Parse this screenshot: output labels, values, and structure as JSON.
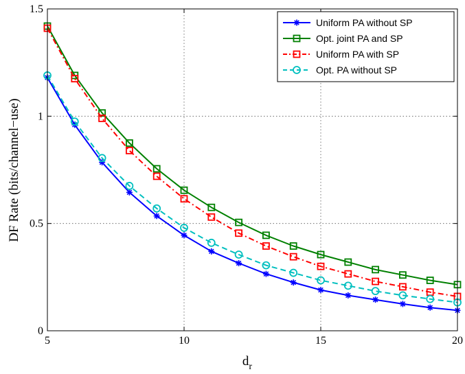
{
  "chart_data": {
    "type": "line",
    "title": "",
    "xlabel": "d",
    "xlabel_subscript": "r",
    "ylabel": "DF Rate (bits/channel−use)",
    "xlim": [
      5,
      20
    ],
    "ylim": [
      0,
      1.5
    ],
    "xticks": [
      "5",
      "10",
      "15",
      "20"
    ],
    "yticks": [
      "0",
      "0.5",
      "1",
      "1.5"
    ],
    "grid": true,
    "legend_position": "top-right",
    "x": [
      5,
      6,
      7,
      8,
      9,
      10,
      11,
      12,
      13,
      14,
      15,
      16,
      17,
      18,
      19,
      20
    ],
    "series": [
      {
        "name": "Uniform PA without SP",
        "color": "#0000ff",
        "line_style": "solid",
        "marker": "asterisk",
        "values": [
          1.18,
          0.96,
          0.785,
          0.645,
          0.535,
          0.445,
          0.37,
          0.315,
          0.265,
          0.225,
          0.19,
          0.165,
          0.145,
          0.125,
          0.108,
          0.095
        ]
      },
      {
        "name": "Opt. joint PA and SP",
        "color": "#008000",
        "line_style": "solid",
        "marker": "square",
        "values": [
          1.42,
          1.19,
          1.015,
          0.875,
          0.755,
          0.655,
          0.575,
          0.505,
          0.445,
          0.395,
          0.355,
          0.32,
          0.285,
          0.26,
          0.235,
          0.215
        ]
      },
      {
        "name": "Uniform PA with SP",
        "color": "#ff0000",
        "line_style": "dashdot",
        "marker": "square",
        "values": [
          1.41,
          1.175,
          0.99,
          0.84,
          0.72,
          0.615,
          0.53,
          0.455,
          0.395,
          0.345,
          0.3,
          0.265,
          0.23,
          0.205,
          0.18,
          0.16
        ]
      },
      {
        "name": "Opt. PA without SP",
        "color": "#00bfbf",
        "line_style": "dashed",
        "marker": "circle",
        "values": [
          1.19,
          0.975,
          0.805,
          0.675,
          0.57,
          0.48,
          0.41,
          0.355,
          0.305,
          0.27,
          0.235,
          0.21,
          0.185,
          0.165,
          0.148,
          0.132
        ]
      }
    ]
  }
}
